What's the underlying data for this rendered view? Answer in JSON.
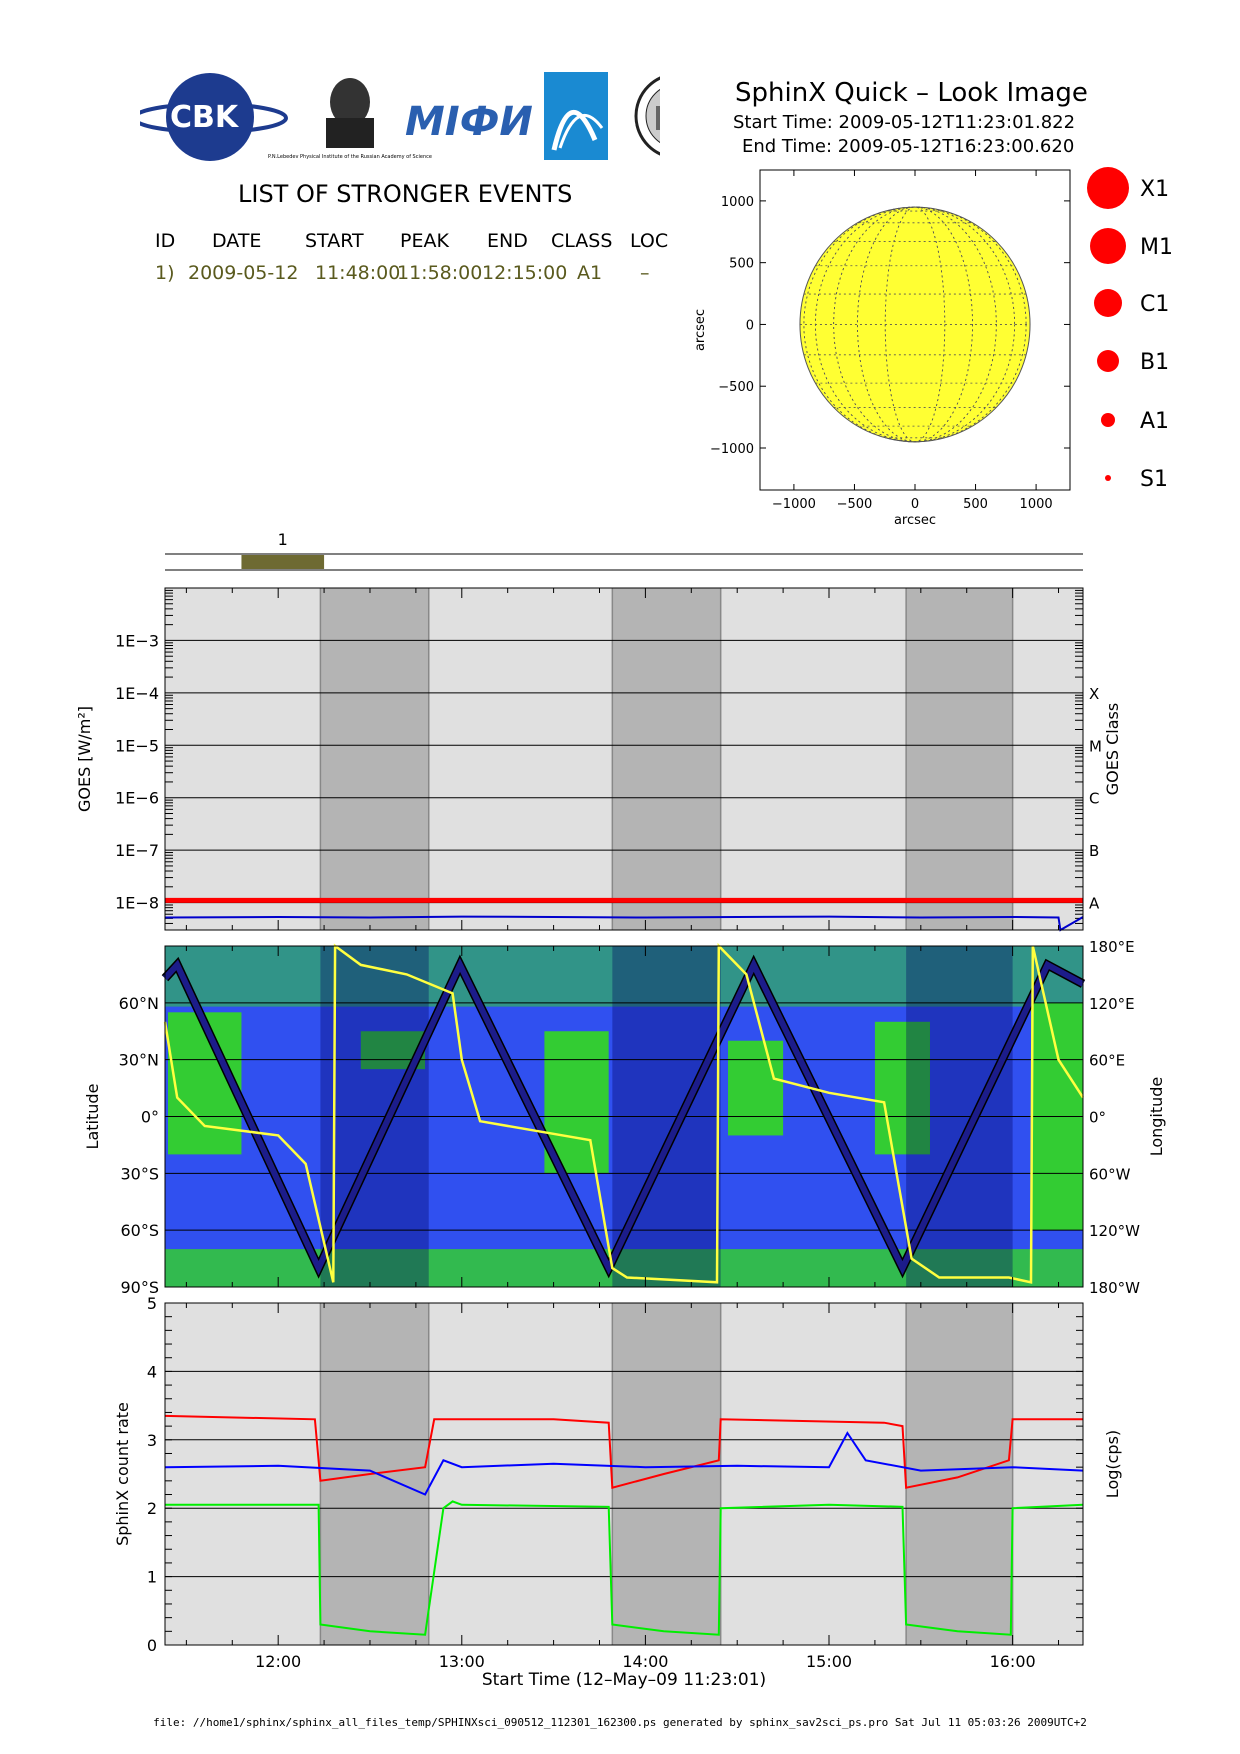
{
  "header": {
    "title": "SphinX Quick – Look Image",
    "start_time": "Start Time: 2009-05-12T11:23:01.822",
    "end_time": "End Time: 2009-05-12T16:23:00.620",
    "logos": [
      {
        "name": "cbk-pan-logo",
        "text": "CBK"
      },
      {
        "name": "lebedev-institute-logo",
        "text": "P.N.Lebedev Physical Institute of the Russian Academy of Science"
      },
      {
        "name": "mifi-logo",
        "text": "MIФИ"
      },
      {
        "name": "comet-logo",
        "text": ""
      },
      {
        "name": "university-seal-logo",
        "text": ""
      }
    ]
  },
  "events": {
    "heading": "LIST OF STRONGER EVENTS",
    "columns": [
      "ID",
      "DATE",
      "START",
      "PEAK",
      "END",
      "CLASS",
      "LOC"
    ],
    "rows": [
      [
        "1)",
        "2009-05-12",
        "11:48:00",
        "11:58:00",
        "12:15:00",
        "A1",
        "–"
      ]
    ]
  },
  "chart_data": [
    {
      "type": "scatter",
      "name": "solar-disk",
      "xlabel": "arcsec",
      "ylabel": "arcsec",
      "xlim": [
        -1280,
        1280
      ],
      "ylim": [
        -1340,
        1250
      ],
      "x_ticks": [
        -1000,
        -500,
        0,
        500,
        1000
      ],
      "y_ticks": [
        -1000,
        -500,
        0,
        500,
        1000
      ],
      "x_tick_labels": [
        "−1000",
        "−500",
        "0",
        "500",
        "1000"
      ],
      "y_tick_labels": [
        "−1000",
        "−500",
        "0",
        "500",
        "1000"
      ],
      "disk_radius": 950,
      "disk_color": "#ffff33",
      "grid_color": "#555555",
      "events": []
    },
    {
      "type": "scatter",
      "name": "class-legend",
      "labels": [
        "X1",
        "M1",
        "C1",
        "B1",
        "A1",
        "S1"
      ],
      "color": "#ff0000"
    },
    {
      "type": "bar",
      "name": "event-timeline",
      "xlim": [
        11.3836,
        16.3833
      ],
      "events": [
        {
          "label": "1",
          "start": 11.8,
          "end": 12.25
        }
      ],
      "event_color": "#6e6a32"
    },
    {
      "type": "line",
      "name": "goes-flux",
      "ylabel": "GOES [W/m²]",
      "ylabel_right": "GOES Class",
      "yscale": "log",
      "ylim": [
        3e-09,
        0.01
      ],
      "y_tick_values": [
        1e-08,
        1e-07,
        1e-06,
        1e-05,
        0.0001,
        0.001
      ],
      "y_tick_labels": [
        "1E−8",
        "1E−7",
        "1E−6",
        "1E−5",
        "1E−4",
        "1E−3"
      ],
      "class_labels": [
        "A",
        "B",
        "C",
        "M",
        "X"
      ],
      "xlim": [
        11.3836,
        16.3833
      ],
      "grid": true,
      "night_intervals": [
        [
          12.23,
          12.82
        ],
        [
          13.82,
          14.41
        ],
        [
          15.42,
          16.0
        ]
      ],
      "series": [
        {
          "name": "threshold",
          "color": "#ff0000",
          "x": [
            11.3836,
            16.3833
          ],
          "y": [
            1.1e-08,
            1.1e-08
          ]
        },
        {
          "name": "flux",
          "color": "#0000cc",
          "x": [
            11.3836,
            12.0,
            12.5,
            13.0,
            13.5,
            14.0,
            14.5,
            15.0,
            15.5,
            16.0,
            16.25,
            16.26,
            16.3833
          ],
          "y": [
            5.2e-09,
            5.3e-09,
            5.2e-09,
            5.4e-09,
            5.3e-09,
            5.2e-09,
            5.3e-09,
            5.4e-09,
            5.2e-09,
            5.3e-09,
            5.2e-09,
            3e-09,
            5.3e-09
          ]
        }
      ]
    },
    {
      "type": "line",
      "name": "orbit-map",
      "ylabel": "Latitude",
      "ylabel_right": "Longitude",
      "ylim": [
        -90,
        90
      ],
      "y_tick_values": [
        -90,
        -60,
        -30,
        0,
        30,
        60
      ],
      "y_tick_labels": [
        "90°S",
        "60°S",
        "30°S",
        "0°",
        "30°N",
        "60°N"
      ],
      "right_tick_labels": [
        "180°W",
        "120°W",
        "60°W",
        "0°",
        "60°E",
        "120°E",
        "180°E"
      ],
      "xlim": [
        11.3836,
        16.3833
      ],
      "background_color": "#3050f0",
      "land_color": "#33cc33",
      "night_intervals": [
        [
          12.23,
          12.82
        ],
        [
          13.82,
          14.41
        ],
        [
          15.42,
          16.0
        ]
      ],
      "series": [
        {
          "name": "latitude",
          "color": "#1c1c8a",
          "x": [
            11.3836,
            11.45,
            12.22,
            12.99,
            13.8,
            14.59,
            15.4,
            16.19,
            16.3833
          ],
          "y": [
            73,
            80,
            -80,
            80,
            -80,
            80,
            -80,
            80,
            70
          ]
        },
        {
          "name": "longitude",
          "color": "#ffff40",
          "x": [
            11.3836,
            11.45,
            11.6,
            12.0,
            12.15,
            12.3,
            12.31,
            12.45,
            12.7,
            12.95,
            13.0,
            13.1,
            13.4,
            13.7,
            13.82,
            13.9,
            14.39,
            14.4,
            14.55,
            14.7,
            15.0,
            15.3,
            15.45,
            15.6,
            15.98,
            16.1,
            16.11,
            16.25,
            16.3833
          ],
          "y": [
            100,
            20,
            -10,
            -20,
            -50,
            -175,
            180,
            160,
            150,
            130,
            60,
            -5,
            -15,
            -25,
            -160,
            -170,
            -175,
            180,
            150,
            40,
            25,
            15,
            -150,
            -170,
            -170,
            -175,
            180,
            60,
            20
          ]
        }
      ]
    },
    {
      "type": "line",
      "name": "sphinx-count-rate",
      "xlabel": "Start Time (12–May–09 11:23:01)",
      "ylabel": "SphinX count rate",
      "ylabel_right": "Log(cps)",
      "ylim": [
        0,
        5
      ],
      "y_ticks": [
        0,
        1,
        2,
        3,
        4,
        5
      ],
      "xlim": [
        11.3836,
        16.3833
      ],
      "x_ticks": [
        12,
        13,
        14,
        15,
        16
      ],
      "x_tick_labels": [
        "12:00",
        "13:00",
        "14:00",
        "15:00",
        "16:00"
      ],
      "grid": true,
      "night_intervals": [
        [
          12.23,
          12.82
        ],
        [
          13.82,
          14.41
        ],
        [
          15.42,
          16.0
        ]
      ],
      "series": [
        {
          "name": "red",
          "color": "#ff0000",
          "x": [
            11.3836,
            12.2,
            12.23,
            12.5,
            12.8,
            12.85,
            13.5,
            13.8,
            13.82,
            14.1,
            14.4,
            14.41,
            15.3,
            15.4,
            15.42,
            15.7,
            15.98,
            16.0,
            16.3833
          ],
          "y": [
            3.35,
            3.3,
            2.4,
            2.5,
            2.6,
            3.3,
            3.3,
            3.25,
            2.3,
            2.5,
            2.7,
            3.3,
            3.25,
            3.2,
            2.3,
            2.45,
            2.7,
            3.3,
            3.3
          ]
        },
        {
          "name": "blue",
          "color": "#0000ff",
          "x": [
            11.3836,
            12.0,
            12.5,
            12.8,
            12.9,
            13.0,
            13.5,
            14.0,
            14.5,
            15.0,
            15.1,
            15.2,
            15.5,
            16.0,
            16.3833
          ],
          "y": [
            2.6,
            2.62,
            2.55,
            2.2,
            2.7,
            2.6,
            2.65,
            2.6,
            2.62,
            2.6,
            3.1,
            2.7,
            2.55,
            2.6,
            2.55
          ]
        },
        {
          "name": "green",
          "color": "#00ee00",
          "x": [
            11.3836,
            12.22,
            12.23,
            12.5,
            12.8,
            12.9,
            12.95,
            13.0,
            13.8,
            13.82,
            14.1,
            14.4,
            14.41,
            15.0,
            15.4,
            15.42,
            15.7,
            15.99,
            16.0,
            16.3833
          ],
          "y": [
            2.05,
            2.05,
            0.3,
            0.2,
            0.15,
            2.0,
            2.1,
            2.05,
            2.02,
            0.3,
            0.2,
            0.15,
            2.0,
            2.05,
            2.02,
            0.3,
            0.2,
            0.15,
            2.0,
            2.05
          ]
        }
      ]
    }
  ],
  "footer": "file: //home1/sphinx/sphinx_all_files_temp/SPHINXsci_090512_112301_162300.ps generated by sphinx_sav2sci_ps.pro Sat Jul 11 05:03:26 2009UTC+2"
}
